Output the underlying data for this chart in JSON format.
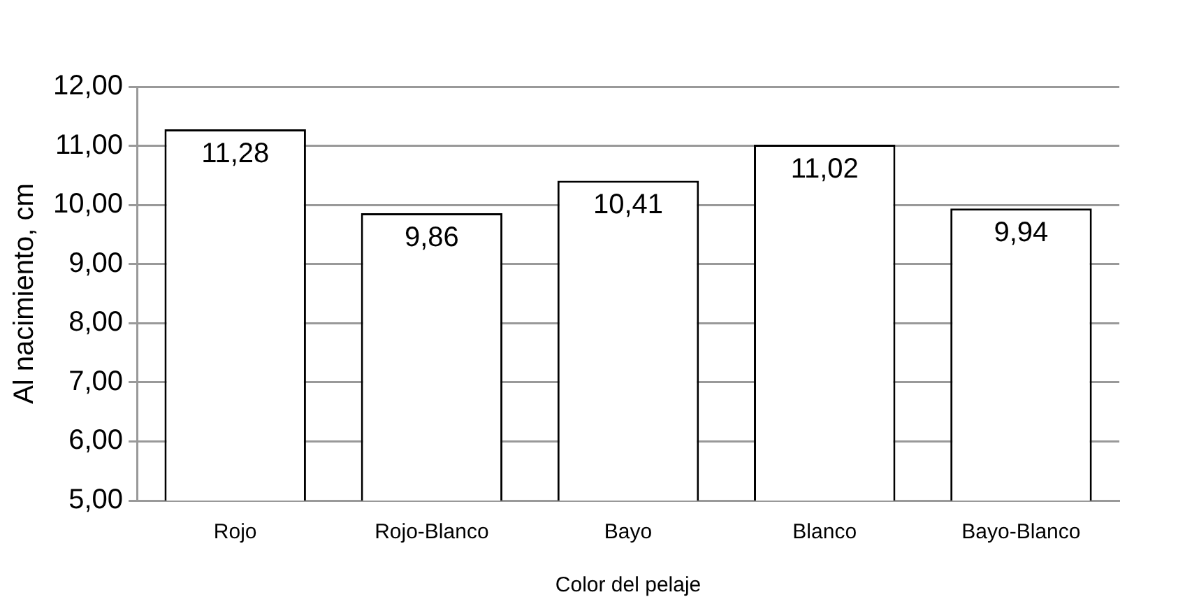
{
  "chart_data": {
    "type": "bar",
    "xlabel": "Color del pelaje",
    "ylabel": "Al nacimiento, cm",
    "categories": [
      "Rojo",
      "Rojo-Blanco",
      "Bayo",
      "Blanco",
      "Bayo-Blanco"
    ],
    "values": [
      11.28,
      9.86,
      10.41,
      11.02,
      9.94
    ],
    "value_labels": [
      "11,28",
      "9,86",
      "10,41",
      "11,02",
      "9,94"
    ],
    "color": "#ffffff",
    "ylim": [
      5,
      12
    ],
    "yticks": [
      {
        "value": 5,
        "label": "5,00"
      },
      {
        "value": 6,
        "label": "6,00"
      },
      {
        "value": 7,
        "label": "7,00"
      },
      {
        "value": 8,
        "label": "8,00"
      },
      {
        "value": 9,
        "label": "9,00"
      },
      {
        "value": 10,
        "label": "10,00"
      },
      {
        "value": 11,
        "label": "11,00"
      },
      {
        "value": 12,
        "label": "12,00"
      }
    ],
    "grid": "y"
  }
}
